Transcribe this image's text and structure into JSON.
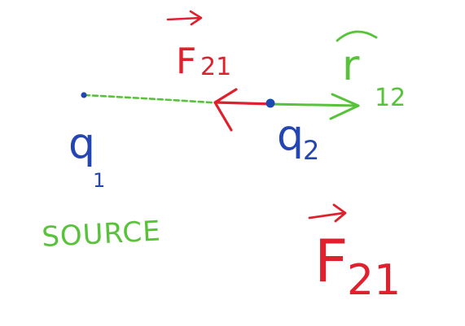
{
  "diagram": {
    "charges": {
      "q1": {
        "letter": "q",
        "subscript": "1"
      },
      "q2": {
        "letter": "q",
        "subscript": "2"
      }
    },
    "source_label": "SOURCE",
    "force_label_top": {
      "letter": "F",
      "subscript": "21"
    },
    "force_label_bottom": {
      "letter": "F",
      "subscript": "21"
    },
    "unit_vector_label": {
      "letter": "r",
      "subscript": "12"
    },
    "colors": {
      "charge": "#2446b3",
      "force": "#e0202c",
      "unit_vector": "#58c23a",
      "background": "#ffffff"
    }
  }
}
